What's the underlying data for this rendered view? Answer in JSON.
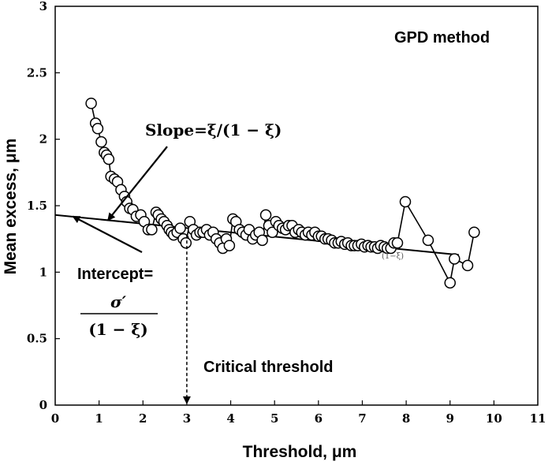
{
  "chart_data": {
    "type": "scatter",
    "title": "",
    "xlabel": "Threshold, μm",
    "ylabel": "Mean excess, μm",
    "xlim": [
      0,
      11
    ],
    "ylim": [
      0,
      3
    ],
    "x_ticks": [
      0,
      1,
      2,
      3,
      4,
      5,
      6,
      7,
      8,
      9,
      10,
      11
    ],
    "y_ticks": [
      0,
      0.5,
      1,
      1.5,
      2,
      2.5,
      3
    ],
    "y_tick_labels": [
      "0",
      "0.5",
      "1",
      "1.5",
      "2",
      "2.5",
      "3"
    ],
    "series": [
      {
        "name": "Mean excess",
        "x": [
          0.82,
          0.92,
          0.97,
          1.05,
          1.12,
          1.17,
          1.22,
          1.27,
          1.35,
          1.42,
          1.5,
          1.58,
          1.63,
          1.7,
          1.77,
          1.85,
          1.95,
          2.03,
          2.12,
          2.2,
          2.3,
          2.35,
          2.42,
          2.48,
          2.55,
          2.6,
          2.65,
          2.7,
          2.78,
          2.85,
          2.92,
          2.98,
          3.07,
          3.15,
          3.22,
          3.3,
          3.37,
          3.45,
          3.52,
          3.6,
          3.67,
          3.75,
          3.82,
          3.9,
          3.97,
          4.05,
          4.12,
          4.2,
          4.27,
          4.35,
          4.42,
          4.5,
          4.57,
          4.65,
          4.72,
          4.8,
          4.87,
          4.95,
          5.03,
          5.1,
          5.18,
          5.25,
          5.32,
          5.4,
          5.47,
          5.55,
          5.62,
          5.7,
          5.77,
          5.85,
          5.92,
          6.0,
          6.07,
          6.15,
          6.22,
          6.3,
          6.37,
          6.45,
          6.52,
          6.6,
          6.67,
          6.75,
          6.82,
          6.9,
          6.98,
          7.05,
          7.13,
          7.2,
          7.28,
          7.35,
          7.42,
          7.5,
          7.57,
          7.65,
          7.72,
          7.8,
          7.98,
          8.5,
          9.0,
          9.1,
          9.4,
          9.55
        ],
        "y": [
          2.27,
          2.12,
          2.08,
          1.98,
          1.9,
          1.88,
          1.85,
          1.72,
          1.7,
          1.68,
          1.62,
          1.57,
          1.53,
          1.48,
          1.47,
          1.42,
          1.43,
          1.38,
          1.32,
          1.32,
          1.45,
          1.43,
          1.4,
          1.38,
          1.35,
          1.32,
          1.3,
          1.28,
          1.3,
          1.33,
          1.25,
          1.22,
          1.38,
          1.32,
          1.28,
          1.3,
          1.3,
          1.32,
          1.28,
          1.3,
          1.25,
          1.22,
          1.18,
          1.25,
          1.2,
          1.4,
          1.38,
          1.32,
          1.3,
          1.28,
          1.32,
          1.25,
          1.28,
          1.3,
          1.24,
          1.43,
          1.35,
          1.3,
          1.38,
          1.35,
          1.33,
          1.32,
          1.35,
          1.35,
          1.3,
          1.32,
          1.3,
          1.28,
          1.3,
          1.28,
          1.3,
          1.27,
          1.27,
          1.25,
          1.25,
          1.24,
          1.22,
          1.22,
          1.23,
          1.21,
          1.22,
          1.2,
          1.2,
          1.2,
          1.21,
          1.19,
          1.2,
          1.19,
          1.19,
          1.18,
          1.2,
          1.19,
          1.18,
          1.18,
          1.22,
          1.22,
          1.53,
          1.24,
          0.92,
          1.1,
          1.05,
          1.3
        ]
      },
      {
        "name": "Linear fit",
        "x": [
          0,
          9.2
        ],
        "y": [
          1.43,
          1.13
        ]
      }
    ],
    "annotations": {
      "method": "GPD method",
      "slope": "Slope=ξ/(1 − ξ)",
      "intercept_label": "Intercept=",
      "intercept_numerator": "σ′",
      "intercept_denominator": "(1 − ξ)",
      "critical_threshold": "Critical threshold",
      "critical_threshold_x": 3,
      "fit_label": "(1−ξ)"
    },
    "legend": "none",
    "grid": false
  }
}
